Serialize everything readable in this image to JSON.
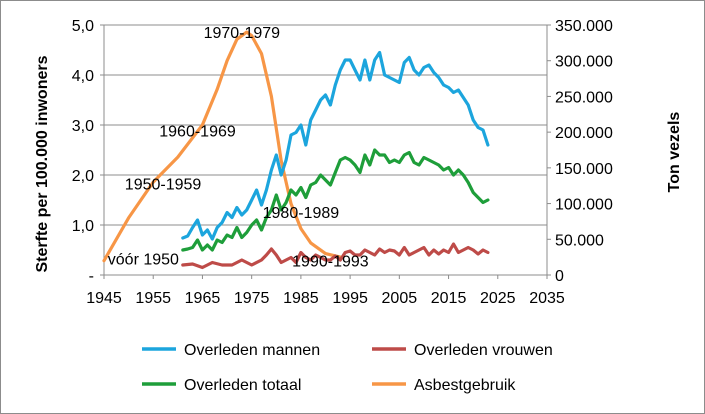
{
  "chart_data": {
    "type": "line",
    "title": "",
    "xlabel": "",
    "ylabel": "Sterfte per 100.000 inwoners",
    "y2label": "Ton vezels",
    "xlim": [
      1945,
      2035
    ],
    "ylim": [
      0,
      5
    ],
    "y2lim": [
      0,
      350000
    ],
    "grid": "horizontal",
    "legend_position": "bottom",
    "x_ticks": [
      "1945",
      "1955",
      "1965",
      "1975",
      "1985",
      "1995",
      "2005",
      "2015",
      "2025",
      "2035"
    ],
    "y_ticks": [
      "-",
      "1,0",
      "2,0",
      "3,0",
      "4,0",
      "5,0"
    ],
    "y2_ticks": [
      "0",
      "50.000",
      "100.000",
      "150.000",
      "200.000",
      "250.000",
      "300.000",
      "350.000"
    ],
    "series": [
      {
        "name": "Overleden mannen",
        "axis": "left",
        "color": "#1ca5dd",
        "x": [
          1961,
          1962,
          1963,
          1964,
          1965,
          1966,
          1967,
          1968,
          1969,
          1970,
          1971,
          1972,
          1973,
          1974,
          1975,
          1976,
          1977,
          1978,
          1979,
          1980,
          1981,
          1982,
          1983,
          1984,
          1985,
          1986,
          1987,
          1988,
          1989,
          1990,
          1991,
          1992,
          1993,
          1994,
          1995,
          1996,
          1997,
          1998,
          1999,
          2000,
          2001,
          2002,
          2003,
          2004,
          2005,
          2006,
          2007,
          2008,
          2009,
          2010,
          2011,
          2012,
          2013,
          2014,
          2015,
          2016,
          2017,
          2018,
          2019,
          2020,
          2021,
          2022,
          2023
        ],
        "y": [
          0.74,
          0.78,
          0.95,
          1.1,
          0.8,
          0.9,
          0.72,
          0.95,
          1.05,
          1.25,
          1.15,
          1.35,
          1.2,
          1.3,
          1.5,
          1.7,
          1.4,
          1.7,
          2.1,
          2.4,
          2.0,
          2.3,
          2.8,
          2.85,
          3.0,
          2.6,
          3.1,
          3.3,
          3.5,
          3.6,
          3.4,
          3.8,
          4.1,
          4.3,
          4.3,
          4.1,
          3.9,
          4.3,
          3.9,
          4.3,
          4.45,
          4.0,
          3.95,
          3.9,
          3.85,
          4.25,
          4.35,
          4.1,
          4.0,
          4.15,
          4.2,
          4.05,
          3.95,
          3.8,
          3.75,
          3.65,
          3.7,
          3.55,
          3.4,
          3.1,
          2.95,
          2.9,
          2.6
        ]
      },
      {
        "name": "Overleden vrouwen",
        "axis": "left",
        "color": "#be4b48",
        "x": [
          1961,
          1963,
          1965,
          1967,
          1969,
          1971,
          1973,
          1975,
          1977,
          1978,
          1979,
          1980,
          1981,
          1982,
          1983,
          1984,
          1985,
          1986,
          1987,
          1988,
          1989,
          1990,
          1991,
          1992,
          1993,
          1994,
          1995,
          1996,
          1997,
          1998,
          1999,
          2000,
          2001,
          2002,
          2003,
          2004,
          2005,
          2006,
          2007,
          2008,
          2009,
          2010,
          2011,
          2012,
          2013,
          2014,
          2015,
          2016,
          2017,
          2018,
          2019,
          2020,
          2021,
          2022,
          2023
        ],
        "y": [
          0.2,
          0.22,
          0.15,
          0.25,
          0.2,
          0.2,
          0.3,
          0.2,
          0.3,
          0.4,
          0.52,
          0.4,
          0.25,
          0.3,
          0.35,
          0.25,
          0.45,
          0.35,
          0.3,
          0.4,
          0.35,
          0.3,
          0.3,
          0.38,
          0.3,
          0.45,
          0.48,
          0.4,
          0.4,
          0.5,
          0.45,
          0.4,
          0.52,
          0.45,
          0.5,
          0.48,
          0.4,
          0.55,
          0.4,
          0.45,
          0.5,
          0.55,
          0.4,
          0.5,
          0.42,
          0.5,
          0.45,
          0.62,
          0.45,
          0.5,
          0.55,
          0.5,
          0.42,
          0.5,
          0.45
        ]
      },
      {
        "name": "Overleden totaal",
        "axis": "left",
        "color": "#1e9e3a",
        "x": [
          1961,
          1962,
          1963,
          1964,
          1965,
          1966,
          1967,
          1968,
          1969,
          1970,
          1971,
          1972,
          1973,
          1974,
          1975,
          1976,
          1977,
          1978,
          1979,
          1980,
          1981,
          1982,
          1983,
          1984,
          1985,
          1986,
          1987,
          1988,
          1989,
          1990,
          1991,
          1992,
          1993,
          1994,
          1995,
          1996,
          1997,
          1998,
          1999,
          2000,
          2001,
          2002,
          2003,
          2004,
          2005,
          2006,
          2007,
          2008,
          2009,
          2010,
          2011,
          2012,
          2013,
          2014,
          2015,
          2016,
          2017,
          2018,
          2019,
          2020,
          2021,
          2022,
          2023
        ],
        "y": [
          0.5,
          0.52,
          0.55,
          0.7,
          0.5,
          0.6,
          0.5,
          0.7,
          0.65,
          0.8,
          0.75,
          0.95,
          0.75,
          0.85,
          1.0,
          1.1,
          0.9,
          1.15,
          1.3,
          1.6,
          1.3,
          1.45,
          1.7,
          1.6,
          1.75,
          1.55,
          1.8,
          1.85,
          2.0,
          1.9,
          1.8,
          2.05,
          2.3,
          2.35,
          2.3,
          2.2,
          2.05,
          2.4,
          2.2,
          2.5,
          2.4,
          2.4,
          2.25,
          2.3,
          2.25,
          2.4,
          2.45,
          2.25,
          2.2,
          2.35,
          2.3,
          2.25,
          2.2,
          2.1,
          2.15,
          2.0,
          2.1,
          2.0,
          1.85,
          1.65,
          1.55,
          1.45,
          1.5
        ]
      },
      {
        "name": "Asbestgebruik",
        "axis": "right",
        "color": "#f79646",
        "x": [
          1945,
          1950,
          1955,
          1960,
          1965,
          1968,
          1970,
          1972,
          1974,
          1975,
          1977,
          1979,
          1981,
          1983,
          1985,
          1987,
          1990,
          1993
        ],
        "y": [
          20000,
          80000,
          130000,
          165000,
          210000,
          260000,
          300000,
          330000,
          340000,
          335000,
          310000,
          250000,
          160000,
          100000,
          65000,
          45000,
          30000,
          25000
        ]
      }
    ],
    "annotations": [
      {
        "text": "vóór 1950",
        "x": 1953,
        "y": 15000,
        "axis": "right"
      },
      {
        "text": "1950-1959",
        "x": 1957,
        "y": 120000,
        "axis": "right"
      },
      {
        "text": "1960-1969",
        "x": 1964,
        "y": 194000,
        "axis": "right"
      },
      {
        "text": "1970-1979",
        "x": 1973,
        "y": 332000,
        "axis": "right"
      },
      {
        "text": "1980-1989",
        "x": 1985,
        "y": 80000,
        "axis": "right"
      },
      {
        "text": "1990-1993",
        "x": 1991,
        "y": 12000,
        "axis": "right"
      }
    ]
  }
}
